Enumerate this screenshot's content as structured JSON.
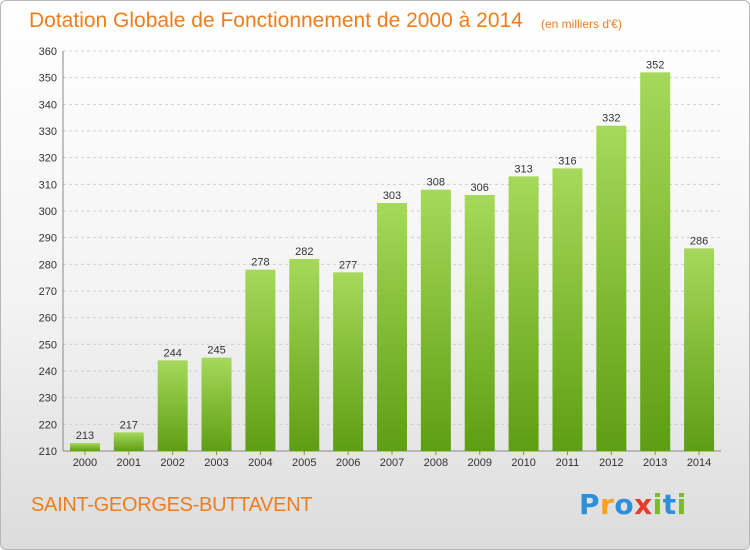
{
  "chart_data": {
    "type": "bar",
    "title": "Dotation Globale de Fonctionnement de 2000 à 2014",
    "subtitle": "(en milliers d'€)",
    "categories": [
      "2000",
      "2001",
      "2002",
      "2003",
      "2004",
      "2005",
      "2006",
      "2007",
      "2008",
      "2009",
      "2010",
      "2011",
      "2012",
      "2013",
      "2014"
    ],
    "values": [
      213,
      217,
      244,
      245,
      278,
      282,
      277,
      303,
      308,
      306,
      313,
      316,
      332,
      352,
      286
    ],
    "xlabel": "",
    "ylabel": "",
    "ylim": [
      210,
      360
    ],
    "yticks": [
      210,
      220,
      230,
      240,
      250,
      260,
      270,
      280,
      290,
      300,
      310,
      320,
      330,
      340,
      350,
      360
    ],
    "grid": true,
    "legend": "none",
    "colors": {
      "bar_top": "#a6d95a",
      "bar_bottom": "#5e9e12",
      "grid": "#d0d0d0",
      "text_accent": "#f07d1c"
    }
  },
  "footer": {
    "city": "SAINT-GEORGES-BUTTAVENT",
    "logo_letters": [
      "P",
      "r",
      "o",
      "x",
      "i",
      "t",
      "i"
    ]
  }
}
